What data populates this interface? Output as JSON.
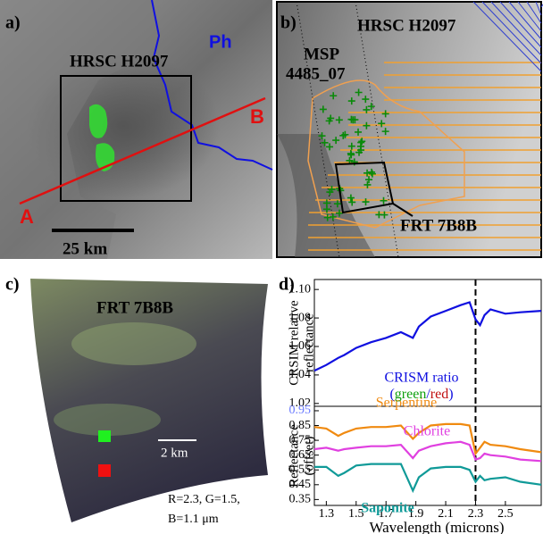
{
  "panels": {
    "a": {
      "label": "a)",
      "ph": "Ph",
      "box": "HRSC H2097",
      "b": "B",
      "a": "A",
      "scale": "25 km"
    },
    "b": {
      "label": "b)",
      "title": "HRSC H2097",
      "msp": [
        "MSP",
        "4485_07"
      ],
      "frt": "FRT 7B8B"
    },
    "c": {
      "label": "c)",
      "title": "FRT 7B8B",
      "scale": "2 km",
      "caption": [
        "R=2.3, G=1.5,",
        "B=1.1 μm"
      ]
    },
    "d": {
      "label": "d)"
    }
  },
  "chart_data": [
    {
      "type": "line",
      "ylabel": [
        "CRSIM relative",
        "reflectance"
      ],
      "x": [
        1.22,
        1.3,
        1.38,
        1.42,
        1.5,
        1.6,
        1.7,
        1.8,
        1.88,
        1.92,
        2.0,
        2.1,
        2.2,
        2.26,
        2.3,
        2.33,
        2.36,
        2.4,
        2.5,
        2.6,
        2.74
      ],
      "series": [
        {
          "name": "CRISM ratio",
          "color": "#1010e0",
          "values": [
            1.043,
            1.047,
            1.052,
            1.054,
            1.059,
            1.063,
            1.066,
            1.07,
            1.066,
            1.074,
            1.081,
            1.085,
            1.089,
            1.091,
            1.079,
            1.075,
            1.082,
            1.086,
            1.083,
            1.084,
            1.085
          ]
        }
      ],
      "annotation_parts": [
        "(",
        "green",
        "/",
        "red",
        ")"
      ],
      "xlim": [
        1.22,
        2.74
      ],
      "ylim": [
        1.018,
        1.107
      ],
      "yticks": [
        1.02,
        1.04,
        1.06,
        1.08,
        {
          "value": 1.1,
          "label": "1.10"
        }
      ],
      "marker_x": 2.3
    },
    {
      "type": "line",
      "ylabel": [
        "Reflectance",
        "(offset)"
      ],
      "xlabel": "Wavelength (microns)",
      "x": [
        1.22,
        1.3,
        1.38,
        1.42,
        1.5,
        1.6,
        1.7,
        1.8,
        1.88,
        1.92,
        2.0,
        2.1,
        2.2,
        2.26,
        2.3,
        2.33,
        2.36,
        2.4,
        2.5,
        2.6,
        2.74
      ],
      "series": [
        {
          "name": "Serpentine",
          "color": "#f08a10",
          "values": [
            0.84,
            0.83,
            0.78,
            0.8,
            0.83,
            0.84,
            0.84,
            0.85,
            0.76,
            0.8,
            0.85,
            0.86,
            0.86,
            0.85,
            0.66,
            0.7,
            0.74,
            0.72,
            0.71,
            0.69,
            0.67
          ]
        },
        {
          "name": "Chlorite",
          "color": "#e040e0",
          "values": [
            0.69,
            0.7,
            0.68,
            0.69,
            0.7,
            0.71,
            0.71,
            0.72,
            0.63,
            0.68,
            0.71,
            0.73,
            0.74,
            0.72,
            0.62,
            0.63,
            0.66,
            0.65,
            0.64,
            0.62,
            0.61
          ]
        },
        {
          "name": "Saponite",
          "color": "#109a98",
          "values": [
            0.57,
            0.57,
            0.51,
            0.53,
            0.58,
            0.59,
            0.59,
            0.59,
            0.41,
            0.5,
            0.56,
            0.57,
            0.57,
            0.55,
            0.47,
            0.51,
            0.48,
            0.49,
            0.5,
            0.47,
            0.45
          ]
        }
      ],
      "xlim": [
        1.22,
        2.74
      ],
      "ylim": [
        0.31,
        0.98
      ],
      "xticks": [
        1.3,
        1.5,
        1.7,
        1.9,
        2.1,
        2.3,
        2.5
      ],
      "yticks": [
        0.35,
        0.45,
        0.55,
        0.65,
        0.75,
        0.85,
        0.95
      ],
      "marker_x": 2.3
    }
  ]
}
